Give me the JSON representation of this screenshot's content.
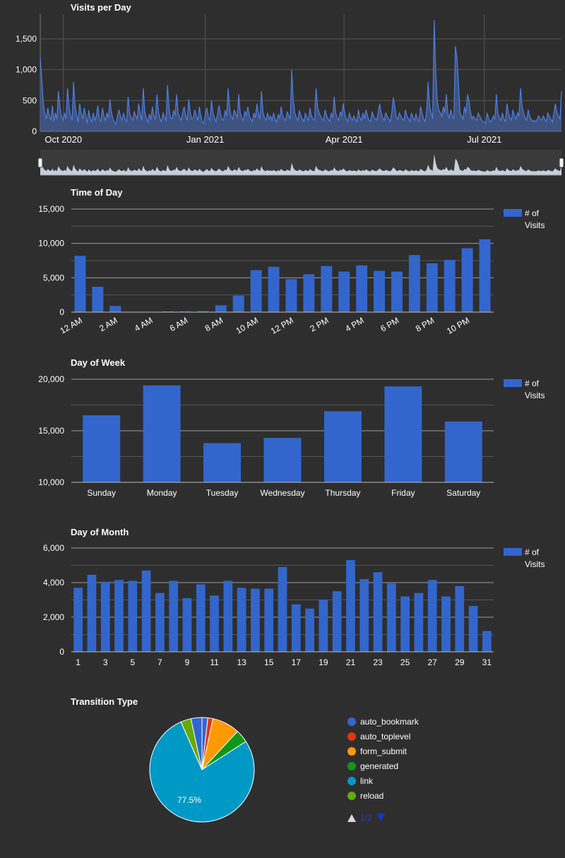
{
  "colors": {
    "background": "#2e2e2e",
    "bar": "#3366cc",
    "area_fill": "#42598f",
    "area_line": "#4f7ee0",
    "grid": "#8a8a8a",
    "text": "#ffffff"
  },
  "chart_data": [
    {
      "id": "visits_per_day",
      "type": "area",
      "title": "Visits per Day",
      "x_ticks": [
        "Oct 2020",
        "Jan 2021",
        "Apr 2021",
        "Jul 2021"
      ],
      "x_range": [
        "2020-09-16",
        "2021-08-20"
      ],
      "y_ticks": [
        "0",
        "500",
        "1,000",
        "1,500"
      ],
      "ylim": [
        0,
        1900
      ],
      "sampling": "one value per day starting 2020-09-16",
      "values": [
        1200,
        850,
        450,
        300,
        200,
        380,
        250,
        180,
        420,
        160,
        300,
        190,
        650,
        400,
        250,
        180,
        300,
        200,
        700,
        400,
        250,
        180,
        800,
        420,
        260,
        150,
        450,
        300,
        200,
        380,
        250,
        130,
        340,
        220,
        150,
        300,
        180,
        250,
        420,
        200,
        160,
        380,
        250,
        170,
        300,
        220,
        520,
        300,
        200,
        150,
        120,
        260,
        350,
        240,
        180,
        300,
        200,
        160,
        560,
        300,
        220,
        180,
        320,
        250,
        200,
        450,
        280,
        180,
        700,
        320,
        220,
        150,
        280,
        190,
        400,
        250,
        200,
        600,
        320,
        200,
        160,
        300,
        230,
        180,
        750,
        380,
        220,
        200,
        340,
        260,
        600,
        300,
        220,
        180,
        320,
        400,
        250,
        180,
        520,
        300,
        200,
        220,
        350,
        250,
        180,
        400,
        250,
        150,
        130,
        280,
        380,
        220,
        180,
        500,
        300,
        220,
        160,
        280,
        420,
        280,
        200,
        180,
        340,
        250,
        700,
        380,
        240,
        200,
        350,
        280,
        230,
        600,
        300,
        220,
        180,
        320,
        260,
        400,
        250,
        200,
        160,
        300,
        220,
        450,
        280,
        200,
        650,
        320,
        220,
        180,
        300,
        200,
        250,
        180,
        300,
        200,
        150,
        280,
        200,
        400,
        250,
        200,
        180,
        320,
        250,
        200,
        1000,
        500,
        300,
        220,
        180,
        340,
        250,
        200,
        160,
        300,
        220,
        180,
        380,
        250,
        200,
        180,
        700,
        400,
        300,
        250,
        200,
        180,
        350,
        250,
        200,
        160,
        300,
        220,
        560,
        300,
        220,
        180,
        320,
        250,
        450,
        280,
        200,
        160,
        300,
        220,
        180,
        250,
        200,
        160,
        350,
        220,
        180,
        300,
        200,
        350,
        250,
        180,
        160,
        320,
        250,
        200,
        180,
        300,
        450,
        300,
        220,
        180,
        300,
        250,
        200,
        160,
        300,
        550,
        400,
        220,
        200,
        300,
        250,
        200,
        180,
        350,
        250,
        200,
        160,
        300,
        220,
        180,
        280,
        200,
        160,
        400,
        300,
        200,
        160,
        320,
        800,
        400,
        300,
        200,
        1800,
        1000,
        500,
        350,
        300,
        250,
        400,
        300,
        600,
        300,
        200,
        350,
        250,
        200,
        1380,
        1200,
        800,
        300,
        250,
        200,
        400,
        300,
        600,
        500,
        300,
        200,
        250,
        200,
        180,
        300,
        250,
        200,
        160,
        150,
        130,
        300,
        200,
        150,
        180,
        250,
        200,
        600,
        300,
        220,
        180,
        300,
        200,
        160,
        450,
        300,
        220,
        180,
        350,
        250,
        200,
        300,
        250,
        700,
        400,
        300,
        220,
        180,
        350,
        250,
        200,
        160,
        180,
        150,
        200,
        250,
        200,
        180,
        250,
        200,
        160,
        300,
        250,
        200,
        150,
        300,
        450,
        300,
        250,
        200,
        650
      ]
    },
    {
      "id": "time_of_day",
      "type": "bar",
      "title": "Time of Day",
      "categories": [
        "12 AM",
        "1 AM",
        "2 AM",
        "3 AM",
        "4 AM",
        "5 AM",
        "6 AM",
        "7 AM",
        "8 AM",
        "9 AM",
        "10 AM",
        "11 AM",
        "12 PM",
        "1 PM",
        "2 PM",
        "3 PM",
        "4 PM",
        "5 PM",
        "6 PM",
        "7 PM",
        "8 PM",
        "9 PM",
        "10 PM",
        "11 PM"
      ],
      "x_tick_labels": [
        "12 AM",
        "",
        "2 AM",
        "",
        "4 AM",
        "",
        "6 AM",
        "",
        "8 AM",
        "",
        "10 AM",
        "",
        "12 PM",
        "",
        "2 PM",
        "",
        "4 PM",
        "",
        "6 PM",
        "",
        "8 PM",
        "",
        "10 PM",
        ""
      ],
      "series": [
        {
          "name": "# of Visits",
          "values": [
            8200,
            3700,
            900,
            50,
            20,
            100,
            120,
            150,
            1000,
            2400,
            6100,
            6600,
            4800,
            5500,
            6700,
            5900,
            6800,
            6000,
            5900,
            8300,
            7100,
            7600,
            9300,
            10600
          ]
        }
      ],
      "y_ticks": [
        "0",
        "5,000",
        "10,000",
        "15,000"
      ],
      "ylim": [
        0,
        15000
      ],
      "legend": "right"
    },
    {
      "id": "day_of_week",
      "type": "bar",
      "title": "Day of Week",
      "categories": [
        "Sunday",
        "Monday",
        "Tuesday",
        "Wednesday",
        "Thursday",
        "Friday",
        "Saturday"
      ],
      "x_tick_labels": [
        "Sunday",
        "Monday",
        "Tuesday",
        "Wednesday",
        "Thursday",
        "Friday",
        "Saturday"
      ],
      "series": [
        {
          "name": "# of Visits",
          "values": [
            16500,
            19400,
            13800,
            14300,
            16900,
            19300,
            15900
          ]
        }
      ],
      "y_ticks": [
        "10,000",
        "15,000",
        "20,000"
      ],
      "ylim": [
        10000,
        20000
      ],
      "legend": "right"
    },
    {
      "id": "day_of_month",
      "type": "bar",
      "title": "Day of Month",
      "categories": [
        "1",
        "2",
        "3",
        "4",
        "5",
        "6",
        "7",
        "8",
        "9",
        "10",
        "11",
        "12",
        "13",
        "14",
        "15",
        "16",
        "17",
        "18",
        "19",
        "20",
        "21",
        "22",
        "23",
        "24",
        "25",
        "26",
        "27",
        "28",
        "29",
        "30",
        "31"
      ],
      "x_tick_labels": [
        "1",
        "",
        "3",
        "",
        "5",
        "",
        "7",
        "",
        "9",
        "",
        "11",
        "",
        "13",
        "",
        "15",
        "",
        "17",
        "",
        "19",
        "",
        "21",
        "",
        "23",
        "",
        "25",
        "",
        "27",
        "",
        "29",
        "",
        "31"
      ],
      "series": [
        {
          "name": "# of Visits",
          "values": [
            3700,
            4450,
            4050,
            4150,
            4100,
            4700,
            3400,
            4100,
            3100,
            3900,
            3250,
            4100,
            3700,
            3650,
            3650,
            4900,
            2750,
            2500,
            3000,
            3500,
            5300,
            4200,
            4600,
            3950,
            3200,
            3400,
            4150,
            3200,
            3800,
            2650,
            1200
          ]
        }
      ],
      "y_ticks": [
        "0",
        "2,000",
        "4,000",
        "6,000"
      ],
      "ylim": [
        0,
        6000
      ],
      "legend": "right"
    },
    {
      "id": "transition_type",
      "type": "pie",
      "title": "Transition Type",
      "slices": [
        {
          "name": "auto_bookmark",
          "value": 1.8,
          "color": "#3366cc"
        },
        {
          "name": "auto_toplevel",
          "value": 1.6,
          "color": "#dc3912"
        },
        {
          "name": "form_submit",
          "value": 8.5,
          "color": "#ff9900"
        },
        {
          "name": "generated",
          "value": 4.0,
          "color": "#109618"
        },
        {
          "name": "link",
          "value": 77.5,
          "color": "#0099c6"
        },
        {
          "name": "reload",
          "value": 3.2,
          "color": "#66aa00"
        },
        {
          "name": "",
          "value": 3.4,
          "color": "#3366cc"
        }
      ],
      "slice_label": "77.5%",
      "legend_page": "1/2"
    }
  ],
  "legend_label": "# of Visits"
}
